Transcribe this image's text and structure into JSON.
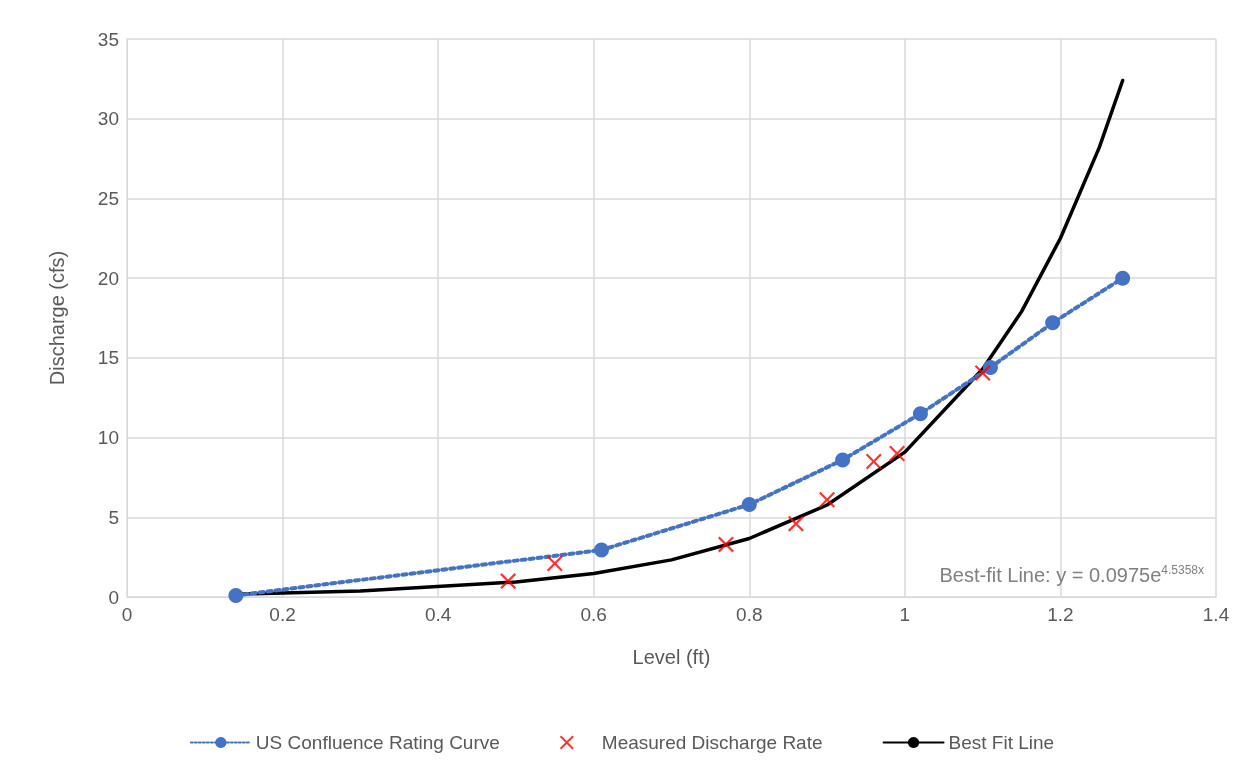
{
  "chart_data": {
    "type": "line",
    "xlabel": "Level (ft)",
    "ylabel": "Discharge (cfs)",
    "xlim": [
      0,
      1.4
    ],
    "xticks": [
      0,
      0.2,
      0.4,
      0.6,
      0.8,
      1,
      1.2,
      1.4
    ],
    "ylim": [
      0,
      35
    ],
    "yticks": [
      0,
      5,
      10,
      15,
      20,
      25,
      30,
      35
    ],
    "grid": true,
    "legend": "bottom",
    "annotations": [
      "Best-fit Line: y = 0.0975e$^{4.5358x}$"
    ],
    "series": [
      {
        "name": "US Confluence Rating Curve",
        "color": "#4472c4",
        "marker": "circle",
        "line_style": "dotted",
        "x": [
          0.14,
          0.61,
          0.8,
          0.92,
          1.02,
          1.11,
          1.19,
          1.28
        ],
        "values": [
          0.1,
          2.95,
          5.8,
          8.6,
          11.5,
          14.4,
          17.2,
          20.0
        ]
      },
      {
        "name": "Measured Discharge Rate",
        "type": "scatter",
        "color": "#ff0000",
        "marker": "cross",
        "x": [
          0.49,
          0.55,
          0.77,
          0.86,
          0.9,
          0.96,
          0.99,
          1.1
        ],
        "values": [
          1.0,
          2.1,
          3.3,
          4.6,
          6.1,
          8.5,
          9.0,
          14.05
        ]
      },
      {
        "name": "Best Fit Line",
        "color": "#000000",
        "marker": "none",
        "line_style": "solid",
        "x": [
          0.14,
          0.3,
          0.5,
          0.6,
          0.7,
          0.8,
          0.9,
          1.0,
          1.1,
          1.15,
          1.2,
          1.25,
          1.28
        ],
        "values": [
          0.18,
          0.38,
          0.94,
          1.48,
          2.33,
          3.67,
          5.77,
          9.09,
          14.3,
          17.9,
          22.5,
          28.2,
          32.4
        ]
      }
    ]
  }
}
